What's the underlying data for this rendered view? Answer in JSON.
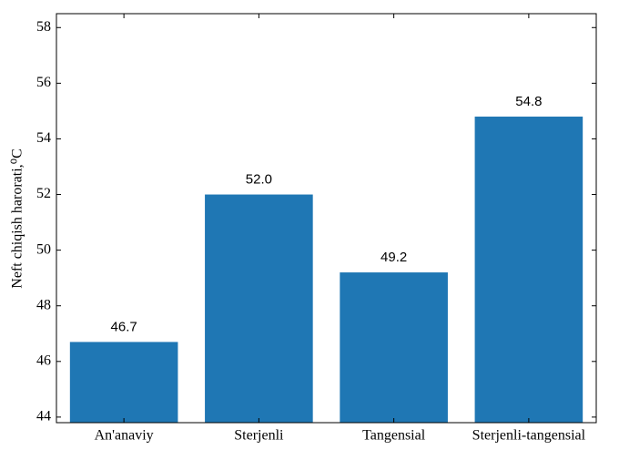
{
  "chart_data": {
    "type": "bar",
    "ylabel": "Neft chiqish harorati,⁰C",
    "categories": [
      "An'anaviy",
      "Sterjenli",
      "Tangensial",
      "Sterjenli-tangensial"
    ],
    "values": [
      46.7,
      52.0,
      49.2,
      54.8
    ],
    "value_labels": [
      "46.7",
      "52.0",
      "49.2",
      "54.8"
    ],
    "color": "#1f77b4",
    "ylim": [
      43.8,
      58.5
    ],
    "yticks": [
      44,
      46,
      48,
      50,
      52,
      54,
      56,
      58
    ],
    "grid": false
  }
}
